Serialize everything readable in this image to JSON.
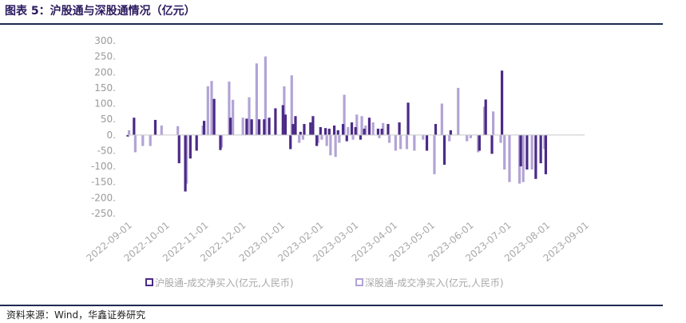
{
  "header": {
    "title": "图表 5：沪股通与深股通情况（亿元）"
  },
  "footer": {
    "source": "资料来源：Wind，华鑫证券研究"
  },
  "colors": {
    "series1": "#4b2a86",
    "series2": "#b2a4d6",
    "rule": "#1f2a52",
    "axis_text": "#9a9a9a"
  },
  "chart_data": {
    "type": "bar",
    "title": "",
    "xlabel": "",
    "ylabel": "",
    "ylim": [
      -250,
      300
    ],
    "yticks": [
      "300.",
      "250.",
      "200.",
      "150.",
      "100.",
      "50.",
      "0.",
      "-50.",
      "-100.",
      "-150.",
      "-200.",
      "-250."
    ],
    "yticks_values": [
      300,
      250,
      200,
      150,
      100,
      50,
      0,
      -50,
      -100,
      -150,
      -200,
      -250
    ],
    "x_range": [
      "2022-09-01",
      "2023-09-01"
    ],
    "xticks": [
      "2022-09-01",
      "2022-10-01",
      "2022-11-01",
      "2022-12-01",
      "2023-01-01",
      "2023-02-01",
      "2023-03-01",
      "2023-04-01",
      "2023-05-01",
      "2023-06-01",
      "2023-07-01",
      "2023-08-01",
      "2023-09-01"
    ],
    "legend_position": "bottom",
    "grid": false,
    "series": [
      {
        "name": "沪股通-成交净买入(亿元,人民币)",
        "points": [
          [
            "2022-09-01",
            -5
          ],
          [
            "2022-09-06",
            55
          ],
          [
            "2022-09-23",
            48
          ],
          [
            "2022-10-12",
            -90
          ],
          [
            "2022-10-17",
            -180
          ],
          [
            "2022-10-21",
            -75
          ],
          [
            "2022-10-26",
            -50
          ],
          [
            "2022-11-01",
            45
          ],
          [
            "2022-11-09",
            115
          ],
          [
            "2022-11-14",
            -48
          ],
          [
            "2022-11-22",
            55
          ],
          [
            "2022-12-05",
            52
          ],
          [
            "2022-12-09",
            50
          ],
          [
            "2022-12-15",
            50
          ],
          [
            "2022-12-19",
            50
          ],
          [
            "2022-12-23",
            55
          ],
          [
            "2022-12-28",
            85
          ],
          [
            "2023-01-03",
            95
          ],
          [
            "2023-01-05",
            65
          ],
          [
            "2023-01-09",
            -45
          ],
          [
            "2023-01-11",
            35
          ],
          [
            "2023-01-13",
            60
          ],
          [
            "2023-01-17",
            10
          ],
          [
            "2023-01-20",
            35
          ],
          [
            "2023-01-25",
            40
          ],
          [
            "2023-01-27",
            60
          ],
          [
            "2023-01-30",
            -35
          ],
          [
            "2023-02-02",
            25
          ],
          [
            "2023-02-06",
            22
          ],
          [
            "2023-02-09",
            20
          ],
          [
            "2023-02-13",
            30
          ],
          [
            "2023-02-16",
            15
          ],
          [
            "2023-02-20",
            35
          ],
          [
            "2023-02-23",
            -20
          ],
          [
            "2023-02-27",
            40
          ],
          [
            "2023-03-02",
            25
          ],
          [
            "2023-03-06",
            -15
          ],
          [
            "2023-03-09",
            20
          ],
          [
            "2023-03-13",
            55
          ],
          [
            "2023-03-20",
            20
          ],
          [
            "2023-03-23",
            20
          ],
          [
            "2023-03-28",
            35
          ],
          [
            "2023-04-06",
            40
          ],
          [
            "2023-04-13",
            103
          ],
          [
            "2023-04-28",
            -50
          ],
          [
            "2023-05-05",
            35
          ],
          [
            "2023-05-12",
            -95
          ],
          [
            "2023-05-17",
            15
          ],
          [
            "2023-06-09",
            -50
          ],
          [
            "2023-06-14",
            113
          ],
          [
            "2023-06-19",
            -60
          ],
          [
            "2023-06-27",
            205
          ],
          [
            "2023-07-12",
            -100
          ],
          [
            "2023-07-17",
            -110
          ],
          [
            "2023-07-24",
            -140
          ],
          [
            "2023-07-28",
            -90
          ],
          [
            "2023-08-01",
            -125
          ]
        ]
      },
      {
        "name": "深股通-成交净买入(亿元,人民币)",
        "points": [
          [
            "2022-09-02",
            15
          ],
          [
            "2022-09-07",
            -55
          ],
          [
            "2022-09-13",
            -35
          ],
          [
            "2022-09-19",
            -35
          ],
          [
            "2022-09-28",
            30
          ],
          [
            "2022-10-11",
            28
          ],
          [
            "2022-10-18",
            -155
          ],
          [
            "2022-10-31",
            30
          ],
          [
            "2022-11-04",
            155
          ],
          [
            "2022-11-07",
            172
          ],
          [
            "2022-11-15",
            -40
          ],
          [
            "2022-11-21",
            170
          ],
          [
            "2022-11-24",
            112
          ],
          [
            "2022-12-02",
            55
          ],
          [
            "2022-12-07",
            120
          ],
          [
            "2022-12-13",
            228
          ],
          [
            "2022-12-20",
            250
          ],
          [
            "2023-01-04",
            155
          ],
          [
            "2023-01-10",
            190
          ],
          [
            "2023-01-16",
            -25
          ],
          [
            "2023-01-19",
            -15
          ],
          [
            "2023-01-31",
            -25
          ],
          [
            "2023-02-03",
            -15
          ],
          [
            "2023-02-07",
            -35
          ],
          [
            "2023-02-10",
            -65
          ],
          [
            "2023-02-14",
            -70
          ],
          [
            "2023-02-17",
            -25
          ],
          [
            "2023-02-21",
            128
          ],
          [
            "2023-02-24",
            25
          ],
          [
            "2023-02-28",
            -15
          ],
          [
            "2023-03-03",
            65
          ],
          [
            "2023-03-07",
            60
          ],
          [
            "2023-03-10",
            30
          ],
          [
            "2023-03-16",
            40
          ],
          [
            "2023-03-21",
            -10
          ],
          [
            "2023-03-24",
            38
          ],
          [
            "2023-03-29",
            -25
          ],
          [
            "2023-04-03",
            -50
          ],
          [
            "2023-04-07",
            -45
          ],
          [
            "2023-04-12",
            -45
          ],
          [
            "2023-04-18",
            -50
          ],
          [
            "2023-04-25",
            -15
          ],
          [
            "2023-05-04",
            -125
          ],
          [
            "2023-05-10",
            100
          ],
          [
            "2023-05-16",
            -20
          ],
          [
            "2023-05-23",
            150
          ],
          [
            "2023-05-30",
            -20
          ],
          [
            "2023-06-02",
            -10
          ],
          [
            "2023-06-08",
            -55
          ],
          [
            "2023-06-13",
            90
          ],
          [
            "2023-06-20",
            75
          ],
          [
            "2023-06-26",
            -25
          ],
          [
            "2023-06-29",
            -110
          ],
          [
            "2023-07-03",
            -150
          ],
          [
            "2023-07-11",
            -155
          ],
          [
            "2023-07-14",
            -150
          ],
          [
            "2023-07-21",
            -110
          ],
          [
            "2023-07-31",
            -45
          ]
        ]
      }
    ]
  }
}
